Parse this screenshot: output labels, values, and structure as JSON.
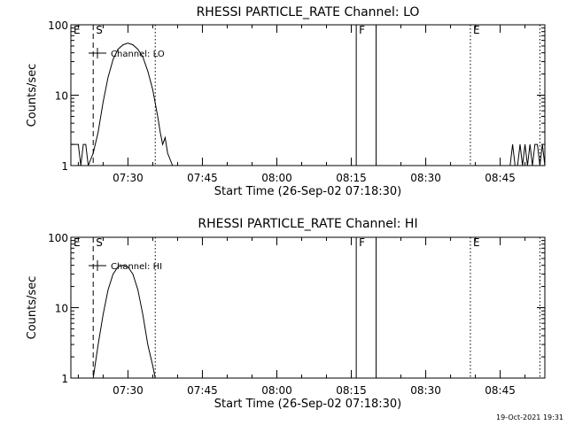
{
  "chart_data": [
    {
      "type": "line",
      "title": "RHESSI PARTICLE_RATE Channel: LO",
      "xlabel": "Start Time (26-Sep-02 07:18:30)",
      "ylabel": "Counts/sec",
      "y_scale": "log",
      "ylim": [
        1,
        100
      ],
      "yticks": [
        {
          "v": 1,
          "label": "1"
        },
        {
          "v": 10,
          "label": "10"
        },
        {
          "v": 100,
          "label": "100"
        }
      ],
      "xlim": [
        "07:18:30",
        "08:54:00"
      ],
      "xticks": [
        "07:30",
        "07:45",
        "08:00",
        "08:15",
        "08:30",
        "08:45"
      ],
      "legend": "Channel: LO",
      "series": [
        {
          "x": [
            "07:18:30",
            "07:19:00",
            "07:20:00",
            "07:20:30",
            "07:21:00",
            "07:21:30",
            "07:22:00",
            "07:23:00",
            "07:24:00",
            "07:25:00",
            "07:26:00",
            "07:27:00",
            "07:28:00",
            "07:29:00",
            "07:30:00",
            "07:31:00",
            "07:32:00",
            "07:33:00",
            "07:34:00",
            "07:35:00",
            "07:36:00",
            "07:36:30",
            "07:37:00",
            "07:37:30",
            "07:38:00",
            "07:39:00"
          ],
          "y": [
            2,
            2,
            2,
            1,
            2,
            2,
            1,
            1.5,
            3,
            8,
            18,
            32,
            45,
            52,
            55,
            52,
            45,
            35,
            22,
            12,
            5,
            3,
            2,
            2.5,
            1.5,
            1
          ]
        },
        {
          "x": [
            "08:47:00",
            "08:47:30",
            "08:48:00",
            "08:48:30",
            "08:49:00",
            "08:49:30",
            "08:50:00",
            "08:50:30",
            "08:51:00",
            "08:51:30",
            "08:52:00",
            "08:52:30",
            "08:53:00",
            "08:53:30",
            "08:54:00"
          ],
          "y": [
            1,
            2,
            1,
            1,
            2,
            1,
            2,
            1,
            2,
            1,
            2,
            2,
            1,
            2,
            1
          ]
        }
      ],
      "markers": [
        {
          "label": "E",
          "time": "07:18:30",
          "style": "none"
        },
        {
          "label": "S",
          "time": "07:23:00",
          "style": "dashed"
        },
        {
          "label": "",
          "time": "07:35:30",
          "style": "dotted"
        },
        {
          "label": "F",
          "time": "08:16:00",
          "style": "solid"
        },
        {
          "label": "",
          "time": "08:20:00",
          "style": "solid"
        },
        {
          "label": "E",
          "time": "08:39:00",
          "style": "dotted"
        },
        {
          "label": "",
          "time": "08:53:00",
          "style": "dotted"
        }
      ]
    },
    {
      "type": "line",
      "title": "RHESSI PARTICLE_RATE Channel: HI",
      "xlabel": "Start Time (26-Sep-02 07:18:30)",
      "ylabel": "Counts/sec",
      "y_scale": "log",
      "ylim": [
        1,
        100
      ],
      "yticks": [
        {
          "v": 1,
          "label": "1"
        },
        {
          "v": 10,
          "label": "10"
        },
        {
          "v": 100,
          "label": "100"
        }
      ],
      "xlim": [
        "07:18:30",
        "08:54:00"
      ],
      "xticks": [
        "07:30",
        "07:45",
        "08:00",
        "08:15",
        "08:30",
        "08:45"
      ],
      "legend": "Channel: HI",
      "series": [
        {
          "x": [
            "07:23:00",
            "07:24:00",
            "07:25:00",
            "07:26:00",
            "07:27:00",
            "07:28:00",
            "07:29:00",
            "07:30:00",
            "07:31:00",
            "07:32:00",
            "07:33:00",
            "07:34:00",
            "07:35:00",
            "07:35:30"
          ],
          "y": [
            1,
            3,
            8,
            18,
            30,
            38,
            40,
            38,
            30,
            18,
            8,
            3,
            1.5,
            1
          ]
        }
      ],
      "markers": [
        {
          "label": "E",
          "time": "07:18:30",
          "style": "none"
        },
        {
          "label": "S",
          "time": "07:23:00",
          "style": "dashed"
        },
        {
          "label": "",
          "time": "07:35:30",
          "style": "dotted"
        },
        {
          "label": "F",
          "time": "08:16:00",
          "style": "solid"
        },
        {
          "label": "",
          "time": "08:20:00",
          "style": "solid"
        },
        {
          "label": "E",
          "time": "08:39:00",
          "style": "dotted"
        },
        {
          "label": "",
          "time": "08:53:00",
          "style": "dotted"
        }
      ]
    }
  ],
  "footer": {
    "timestamp": "19-Oct-2021 19:31"
  }
}
